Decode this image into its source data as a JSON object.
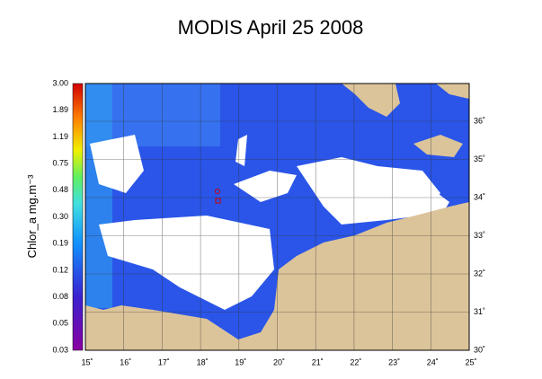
{
  "title": "MODIS April 25 2008",
  "colorbar": {
    "label": "Chlor_a mg.m⁻³",
    "ticks": [
      "3.00",
      "1.89",
      "1.19",
      "0.75",
      "0.48",
      "0.30",
      "0.19",
      "0.12",
      "0.08",
      "0.05",
      "0.03"
    ]
  },
  "longitude_labels": [
    "15˚",
    "16˚",
    "17˚",
    "18˚",
    "19˚",
    "20˚",
    "21˚",
    "22˚",
    "23˚",
    "24˚",
    "25˚"
  ],
  "latitude_labels": [
    "36˚",
    "35˚",
    "34˚",
    "33˚",
    "32˚",
    "31˚",
    "30˚"
  ]
}
